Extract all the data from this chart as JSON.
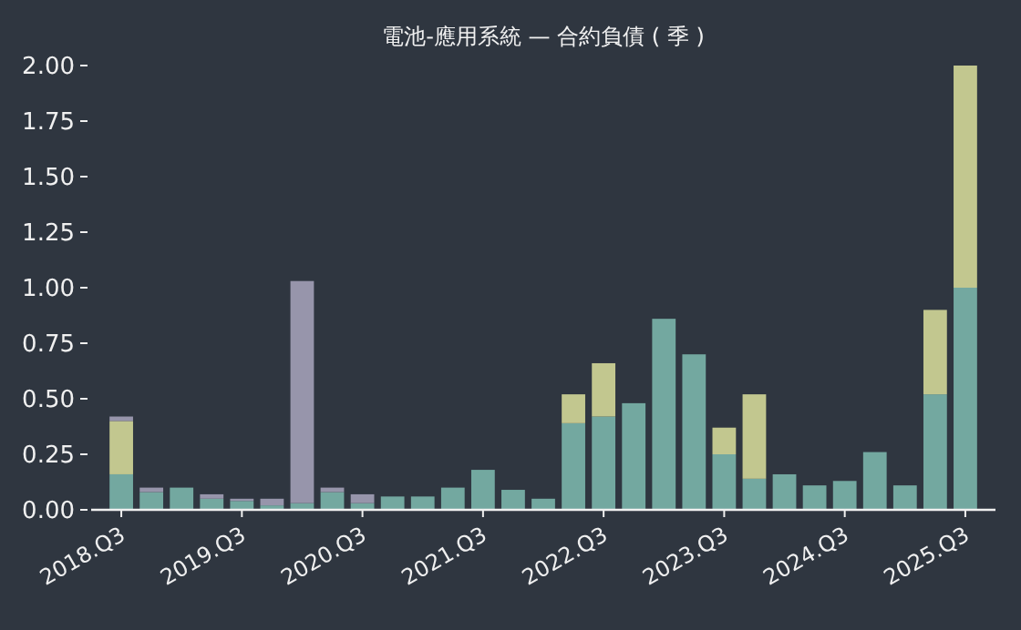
{
  "chart_data": {
    "type": "bar",
    "title": "電池-應用系統 — 合約負債 ( 季 )",
    "stacked": true,
    "categories": [
      "2018.Q3",
      null,
      null,
      null,
      "2019.Q3",
      null,
      null,
      null,
      "2020.Q3",
      null,
      null,
      null,
      "2021.Q3",
      null,
      null,
      null,
      "2022.Q3",
      null,
      null,
      null,
      "2023.Q3",
      null,
      null,
      null,
      "2024.Q3",
      null,
      null,
      null,
      "2025.Q3"
    ],
    "series": [
      {
        "color": "#73a8a0",
        "values": [
          0.16,
          0.08,
          0.1,
          0.05,
          0.04,
          0.02,
          0.03,
          0.08,
          0.03,
          0.06,
          0.06,
          0.1,
          0.18,
          0.09,
          0.05,
          0.39,
          0.42,
          0.48,
          0.86,
          0.7,
          0.25,
          0.14,
          0.16,
          0.11,
          0.13,
          0.26,
          0.11,
          0.52,
          1.0
        ]
      },
      {
        "color": "#c2c78f",
        "values": [
          0.24,
          0,
          0,
          0,
          0,
          0,
          0,
          0,
          0,
          0,
          0,
          0,
          0,
          0,
          0,
          0.13,
          0.24,
          0,
          0,
          0,
          0.12,
          0.38,
          0,
          0,
          0,
          0,
          0,
          0.38,
          1.0
        ]
      },
      {
        "color": "#9795ab",
        "values": [
          0.02,
          0.02,
          0,
          0.02,
          0.01,
          0.03,
          1.0,
          0.02,
          0.04,
          0,
          0,
          0,
          0,
          0,
          0,
          0,
          0,
          0,
          0,
          0,
          0,
          0,
          0,
          0,
          0,
          0,
          0,
          0,
          0
        ]
      }
    ],
    "ylim": [
      0,
      2
    ],
    "yticks": [
      {
        "value": 0,
        "label": "0.00"
      },
      {
        "value": 0.25,
        "label": "0.25"
      },
      {
        "value": 0.5,
        "label": "0.50"
      },
      {
        "value": 0.75,
        "label": "0.75"
      },
      {
        "value": 1,
        "label": "1.00"
      },
      {
        "value": 1.25,
        "label": "1.25"
      },
      {
        "value": 1.5,
        "label": "1.50"
      },
      {
        "value": 1.75,
        "label": "1.75"
      },
      {
        "value": 2,
        "label": "2.00"
      }
    ],
    "grid": false
  }
}
